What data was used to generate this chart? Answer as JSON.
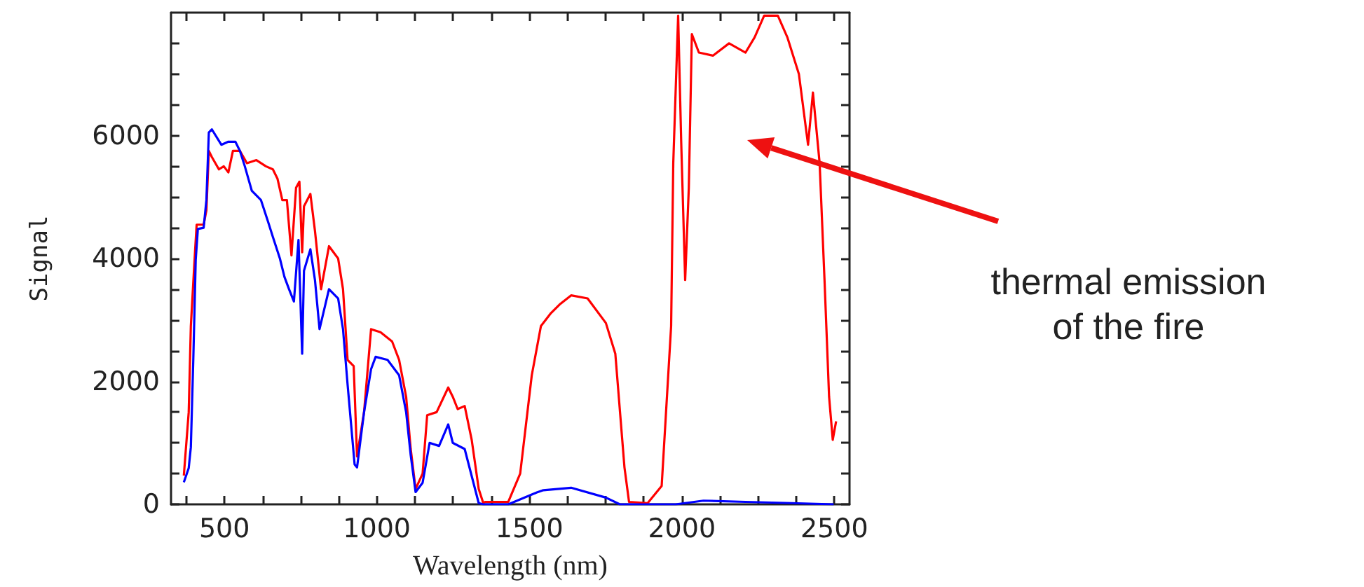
{
  "chart_data": {
    "type": "line",
    "xlabel": "Wavelength (nm)",
    "ylabel": "Signal",
    "xlim": [
      325,
      2550
    ],
    "ylim": [
      0,
      8000
    ],
    "xticks": [
      {
        "value": 375,
        "label": null
      },
      500,
      {
        "value": 625,
        "label": null
      },
      {
        "value": 750,
        "label": null
      },
      {
        "value": 875,
        "label": null
      },
      1000,
      {
        "value": 1125,
        "label": null
      },
      {
        "value": 1250,
        "label": null
      },
      {
        "value": 1375,
        "label": null
      },
      1500,
      {
        "value": 1625,
        "label": null
      },
      {
        "value": 1750,
        "label": null
      },
      {
        "value": 1875,
        "label": null
      },
      2000,
      {
        "value": 2125,
        "label": null
      },
      {
        "value": 2250,
        "label": null
      },
      {
        "value": 2375,
        "label": null
      },
      2500
    ],
    "yticks": [
      0,
      {
        "value": 500,
        "label": null
      },
      {
        "value": 1000,
        "label": null
      },
      {
        "value": 1500,
        "label": null
      },
      2000,
      {
        "value": 2500,
        "label": null
      },
      {
        "value": 3000,
        "label": null
      },
      {
        "value": 3500,
        "label": null
      },
      4000,
      {
        "value": 4500,
        "label": null
      },
      {
        "value": 5000,
        "label": null
      },
      {
        "value": 5500,
        "label": null
      },
      6000,
      {
        "value": 6500,
        "label": null
      },
      {
        "value": 7000,
        "label": null
      },
      {
        "value": 7500,
        "label": null
      }
    ],
    "grid": false,
    "marker": "none",
    "line_style": "solid",
    "annotations": [
      "thermal emission\nof the fire"
    ],
    "series": [
      {
        "color": "#ff0000",
        "x": [
          367,
          383,
          390,
          403,
          409,
          432,
          441,
          449,
          459,
          482,
          498,
          513,
          528,
          551,
          574,
          605,
          636,
          659,
          674,
          690,
          705,
          720,
          735,
          746,
          755,
          761,
          782,
          797,
          817,
          843,
          873,
          889,
          904,
          924,
          935,
          958,
          981,
          1012,
          1050,
          1073,
          1096,
          1111,
          1127,
          1150,
          1165,
          1196,
          1234,
          1249,
          1265,
          1288,
          1311,
          1334,
          1349,
          1355,
          1431,
          1470,
          1508,
          1538,
          1569,
          1599,
          1637,
          1691,
          1751,
          1782,
          1812,
          1827,
          1888,
          1934,
          1965,
          1972,
          1988,
          1998,
          2011,
          2023,
          2033,
          2056,
          2102,
          2155,
          2209,
          2239,
          2270,
          2315,
          2346,
          2384,
          2414,
          2430,
          2452,
          2468,
          2483,
          2495,
          2506
        ],
        "values": [
          470,
          1500,
          2900,
          4050,
          4550,
          4550,
          4780,
          5750,
          5650,
          5450,
          5500,
          5400,
          5750,
          5750,
          5550,
          5600,
          5500,
          5450,
          5300,
          4950,
          4950,
          4050,
          5150,
          5250,
          4100,
          4850,
          5050,
          4450,
          3500,
          4200,
          4000,
          3500,
          2350,
          2250,
          780,
          1500,
          2850,
          2800,
          2650,
          2350,
          1750,
          900,
          250,
          500,
          1450,
          1500,
          1900,
          1750,
          1550,
          1600,
          1050,
          250,
          20,
          40,
          40,
          500,
          2100,
          2900,
          3100,
          3250,
          3400,
          3350,
          2950,
          2450,
          600,
          40,
          20,
          300,
          2900,
          5550,
          7950,
          5900,
          3650,
          5150,
          7650,
          7350,
          7300,
          7500,
          7350,
          7600,
          7950,
          7950,
          7600,
          7000,
          5850,
          6700,
          5550,
          3650,
          1750,
          1050,
          1350
        ]
      },
      {
        "color": "#0000ff",
        "x": [
          367,
          383,
          390,
          398,
          406,
          413,
          432,
          441,
          449,
          459,
          490,
          513,
          536,
          551,
          567,
          590,
          620,
          643,
          659,
          682,
          697,
          712,
          728,
          743,
          755,
          761,
          782,
          797,
          812,
          843,
          873,
          889,
          904,
          927,
          935,
          958,
          981,
          996,
          1035,
          1073,
          1096,
          1111,
          1127,
          1150,
          1173,
          1204,
          1234,
          1249,
          1288,
          1334,
          1349,
          1431,
          1523,
          1546,
          1637,
          1751,
          1797,
          1980,
          2071,
          2209,
          2361,
          2498
        ],
        "values": [
          360,
          590,
          930,
          2350,
          3980,
          4480,
          4500,
          4950,
          6050,
          6100,
          5850,
          5900,
          5900,
          5750,
          5500,
          5100,
          4950,
          4600,
          4350,
          4000,
          3700,
          3500,
          3300,
          4300,
          2450,
          3800,
          4150,
          3650,
          2850,
          3500,
          3350,
          2850,
          1950,
          650,
          600,
          1500,
          2200,
          2400,
          2350,
          2100,
          1500,
          800,
          200,
          350,
          1000,
          950,
          1300,
          1000,
          900,
          20,
          0,
          0,
          190,
          230,
          270,
          110,
          0,
          0,
          60,
          40,
          20,
          0
        ]
      }
    ]
  }
}
